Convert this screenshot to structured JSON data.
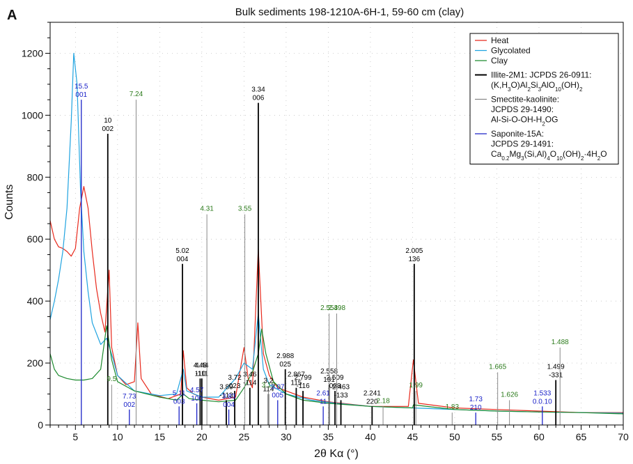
{
  "panel_label": "A",
  "colors": {
    "heat": "#e8291c",
    "glycolated": "#1fa3e0",
    "clay": "#1c8a2e",
    "illite": "#000000",
    "smectite": "#888888",
    "saponite": "#1b22c8",
    "smectite_text": "#2a7a1a",
    "saponite_text": "#1b22c8",
    "illite_text": "#000000"
  },
  "chart_data": {
    "type": "line",
    "title": "Bulk sediments 198-1210A-6H-1, 59-60 cm (clay)",
    "xlabel": "2θ Kα (°)",
    "ylabel": "Counts",
    "xlim": [
      2,
      70
    ],
    "ylim": [
      0,
      1300
    ],
    "x_ticks": [
      5,
      10,
      15,
      20,
      25,
      30,
      35,
      40,
      45,
      50,
      55,
      60,
      65,
      70
    ],
    "y_ticks": [
      0,
      200,
      400,
      600,
      800,
      1000,
      1200
    ],
    "grid": "dotted",
    "legend_position": "top-right",
    "series": [
      {
        "name": "Heat",
        "color_key": "heat",
        "points": [
          [
            2,
            660
          ],
          [
            2.5,
            600
          ],
          [
            3,
            575
          ],
          [
            3.5,
            570
          ],
          [
            4,
            560
          ],
          [
            4.5,
            545
          ],
          [
            5,
            570
          ],
          [
            5.5,
            700
          ],
          [
            6,
            770
          ],
          [
            6.5,
            700
          ],
          [
            7,
            560
          ],
          [
            7.5,
            440
          ],
          [
            8,
            360
          ],
          [
            8.5,
            300
          ],
          [
            9,
            500
          ],
          [
            9.3,
            250
          ],
          [
            10,
            160
          ],
          [
            11,
            130
          ],
          [
            12,
            140
          ],
          [
            12.4,
            330
          ],
          [
            12.8,
            150
          ],
          [
            14,
            100
          ],
          [
            16,
            85
          ],
          [
            17.5,
            100
          ],
          [
            17.8,
            240
          ],
          [
            18.2,
            120
          ],
          [
            19,
            100
          ],
          [
            20,
            90
          ],
          [
            22,
            80
          ],
          [
            24,
            90
          ],
          [
            25,
            250
          ],
          [
            25.5,
            150
          ],
          [
            26,
            120
          ],
          [
            26.7,
            570
          ],
          [
            27.3,
            230
          ],
          [
            28,
            160
          ],
          [
            29,
            120
          ],
          [
            30,
            110
          ],
          [
            32,
            90
          ],
          [
            35,
            75
          ],
          [
            40,
            60
          ],
          [
            44.5,
            60
          ],
          [
            45.1,
            210
          ],
          [
            45.7,
            70
          ],
          [
            50,
            55
          ],
          [
            55,
            50
          ],
          [
            60,
            45
          ],
          [
            65,
            40
          ],
          [
            70,
            40
          ]
        ]
      },
      {
        "name": "Glycolated",
        "color_key": "glycolated",
        "points": [
          [
            2,
            340
          ],
          [
            2.5,
            400
          ],
          [
            3,
            470
          ],
          [
            3.5,
            560
          ],
          [
            4,
            700
          ],
          [
            4.5,
            980
          ],
          [
            4.8,
            1200
          ],
          [
            5.2,
            1100
          ],
          [
            5.6,
            760
          ],
          [
            6,
            560
          ],
          [
            6.5,
            430
          ],
          [
            7,
            330
          ],
          [
            8,
            260
          ],
          [
            8.7,
            280
          ],
          [
            9.5,
            210
          ],
          [
            10,
            160
          ],
          [
            12,
            110
          ],
          [
            15,
            95
          ],
          [
            17,
            100
          ],
          [
            17.8,
            180
          ],
          [
            18.2,
            110
          ],
          [
            20,
            90
          ],
          [
            22,
            90
          ],
          [
            24,
            150
          ],
          [
            25,
            200
          ],
          [
            26,
            180
          ],
          [
            26.7,
            360
          ],
          [
            27.3,
            180
          ],
          [
            28,
            130
          ],
          [
            30,
            100
          ],
          [
            33,
            80
          ],
          [
            36,
            70
          ],
          [
            40,
            60
          ],
          [
            45,
            55
          ],
          [
            50,
            50
          ],
          [
            55,
            45
          ],
          [
            60,
            42
          ],
          [
            65,
            40
          ],
          [
            70,
            38
          ]
        ]
      },
      {
        "name": "Clay",
        "color_key": "clay",
        "points": [
          [
            2,
            230
          ],
          [
            2.5,
            180
          ],
          [
            3,
            160
          ],
          [
            4,
            150
          ],
          [
            5,
            145
          ],
          [
            6,
            145
          ],
          [
            7,
            150
          ],
          [
            8,
            180
          ],
          [
            8.7,
            320
          ],
          [
            9.3,
            210
          ],
          [
            10,
            140
          ],
          [
            12,
            110
          ],
          [
            15,
            90
          ],
          [
            17,
            80
          ],
          [
            17.8,
            100
          ],
          [
            18.5,
            85
          ],
          [
            20,
            80
          ],
          [
            22,
            75
          ],
          [
            24,
            80
          ],
          [
            25,
            120
          ],
          [
            26,
            170
          ],
          [
            26.7,
            230
          ],
          [
            27.1,
            310
          ],
          [
            27.6,
            230
          ],
          [
            28.5,
            140
          ],
          [
            30,
            100
          ],
          [
            32,
            80
          ],
          [
            35,
            70
          ],
          [
            40,
            60
          ],
          [
            45,
            55
          ],
          [
            45.1,
            65
          ],
          [
            50,
            50
          ],
          [
            55,
            45
          ],
          [
            60,
            42
          ],
          [
            65,
            40
          ],
          [
            70,
            36
          ]
        ]
      }
    ],
    "references": [
      {
        "name": "Illite-2M1: JCPDS 26-0911: (K,H3O)Al2Si3AlO10(OH)2",
        "color_key": "illite",
        "peaks": [
          {
            "x": 8.84,
            "h": 940,
            "d": "10",
            "hkl": "002"
          },
          {
            "x": 17.7,
            "h": 520,
            "d": "5.02",
            "hkl": "004"
          },
          {
            "x": 19.8,
            "h": 150,
            "d": "4.48",
            "hkl": "110"
          },
          {
            "x": 20.0,
            "h": 150,
            "d": "4.44",
            "hkl": "-111"
          },
          {
            "x": 22.9,
            "h": 80,
            "d": "3.89",
            "hkl": "-113"
          },
          {
            "x": 23.9,
            "h": 110,
            "d": "3.72",
            "hkl": "023"
          },
          {
            "x": 25.7,
            "h": 120,
            "d": "3.46",
            "hkl": "-114"
          },
          {
            "x": 26.7,
            "h": 1040,
            "d": "3.34",
            "hkl": "006"
          },
          {
            "x": 27.9,
            "h": 100,
            "d": "3.2",
            "hkl": "114"
          },
          {
            "x": 29.9,
            "h": 180,
            "d": "2.988",
            "hkl": "025"
          },
          {
            "x": 31.2,
            "h": 120,
            "d": "2.867",
            "hkl": "115"
          },
          {
            "x": 32.0,
            "h": 110,
            "d": "2.799",
            "hkl": "-116"
          },
          {
            "x": 35.1,
            "h": 130,
            "d": "2.558",
            "hkl": "131"
          },
          {
            "x": 35.8,
            "h": 110,
            "d": "2.509",
            "hkl": "008"
          },
          {
            "x": 36.5,
            "h": 80,
            "d": "2.463",
            "hkl": "-133"
          },
          {
            "x": 40.2,
            "h": 60,
            "d": "2.241",
            "hkl": "220"
          },
          {
            "x": 45.2,
            "h": 520,
            "d": "2.005",
            "hkl": "136"
          },
          {
            "x": 62.0,
            "h": 145,
            "d": "1.499",
            "hkl": "-331"
          }
        ]
      },
      {
        "name": "Smectite-kaolinite: JCPDS 29-1490: Al-Si-O-OH-H2OG",
        "color_key": "smectite",
        "peaks": [
          {
            "x": 9.3,
            "h": 130,
            "d": "9.5",
            "hkl": ""
          },
          {
            "x": 12.2,
            "h": 1050,
            "d": "7.24",
            "hkl": ""
          },
          {
            "x": 20.6,
            "h": 680,
            "d": "4.31",
            "hkl": ""
          },
          {
            "x": 25.1,
            "h": 680,
            "d": "3.55",
            "hkl": ""
          },
          {
            "x": 27.9,
            "h": 110,
            "d": "3.19",
            "hkl": ""
          },
          {
            "x": 35.1,
            "h": 360,
            "d": "2.553",
            "hkl": ""
          },
          {
            "x": 36.0,
            "h": 360,
            "d": "2.498",
            "hkl": ""
          },
          {
            "x": 41.5,
            "h": 60,
            "d": "2.18",
            "hkl": ""
          },
          {
            "x": 45.4,
            "h": 110,
            "d": "1.99",
            "hkl": ""
          },
          {
            "x": 49.7,
            "h": 40,
            "d": "1.83",
            "hkl": ""
          },
          {
            "x": 55.1,
            "h": 170,
            "d": "1.665",
            "hkl": ""
          },
          {
            "x": 56.5,
            "h": 80,
            "d": "1.626",
            "hkl": ""
          },
          {
            "x": 62.5,
            "h": 250,
            "d": "1.488",
            "hkl": ""
          }
        ]
      },
      {
        "name": "Saponite-15A: JCPDS 29-1491: Ca0.2Mg3(Si,Al)4O10(OH)2·4H2O",
        "color_key": "saponite",
        "peaks": [
          {
            "x": 5.7,
            "h": 1050,
            "d": "15.5",
            "hkl": "001"
          },
          {
            "x": 11.4,
            "h": 50,
            "d": "7.73",
            "hkl": "002"
          },
          {
            "x": 17.3,
            "h": 60,
            "d": "5.11",
            "hkl": "003"
          },
          {
            "x": 19.4,
            "h": 70,
            "d": "4.57",
            "hkl": "100"
          },
          {
            "x": 23.2,
            "h": 50,
            "d": "3.83",
            "hkl": "004"
          },
          {
            "x": 29.0,
            "h": 80,
            "d": "3.07",
            "hkl": "005"
          },
          {
            "x": 34.4,
            "h": 60,
            "d": "2.61",
            "hkl": "11"
          },
          {
            "x": 52.5,
            "h": 40,
            "d": "1.73",
            "hkl": "210"
          },
          {
            "x": 60.4,
            "h": 60,
            "d": "1.533",
            "hkl": "0.0.10"
          }
        ]
      }
    ]
  },
  "legend": {
    "entries": [
      {
        "lines": [
          "Heat"
        ],
        "color_key": "heat"
      },
      {
        "lines": [
          "Glycolated"
        ],
        "color_key": "glycolated"
      },
      {
        "lines": [
          "Clay"
        ],
        "color_key": "clay"
      },
      {
        "lines": [
          "Illite-2M1: JCPDS 26-0911:",
          "(K,H3O)Al2Si3AlO10(OH)2"
        ],
        "color_key": "illite"
      },
      {
        "lines": [
          "Smectite-kaolinite:",
          "JCPDS 29-1490:",
          "Al-Si-O-OH-H2OG"
        ],
        "color_key": "smectite"
      },
      {
        "lines": [
          "Saponite-15A:",
          "JCPDS 29-1491:",
          "Ca0.2Mg3(Si,Al)4O10(OH)2·4H2O"
        ],
        "color_key": "saponite"
      }
    ]
  }
}
